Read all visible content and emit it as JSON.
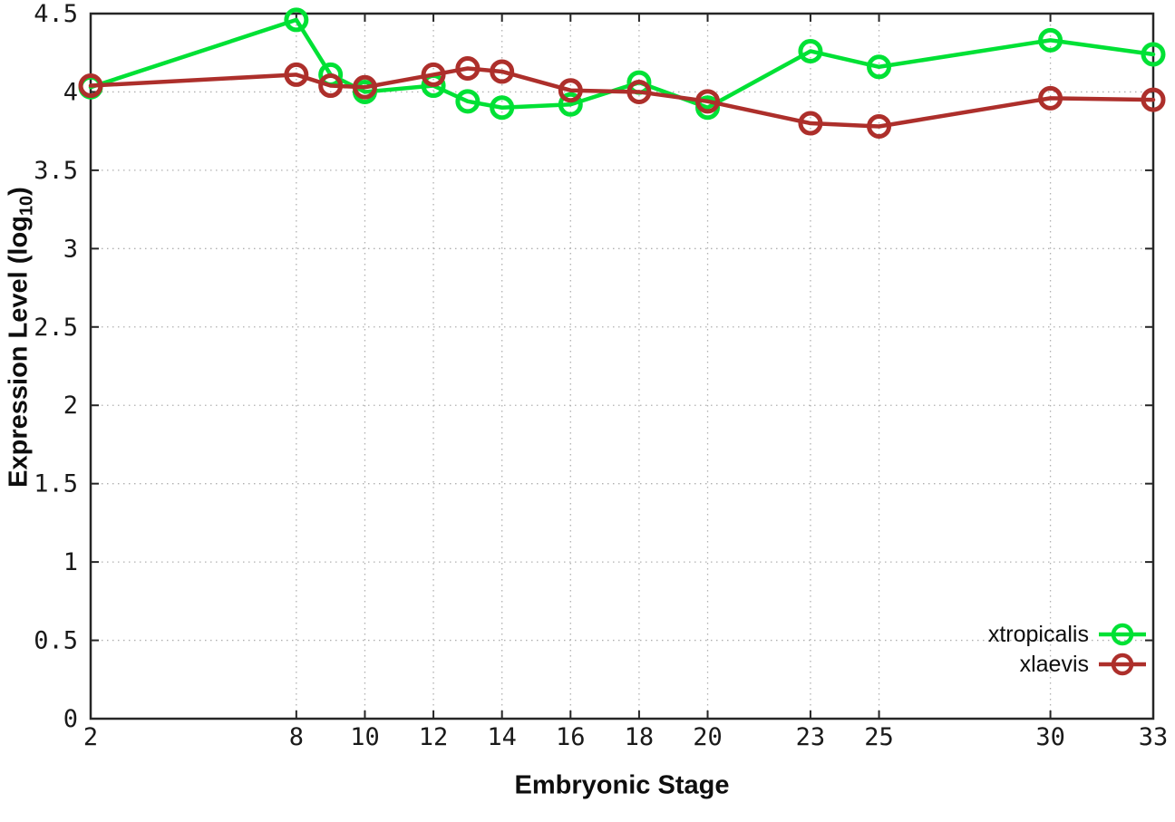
{
  "chart_data": {
    "type": "line",
    "title": "",
    "xlabel": "Embryonic Stage",
    "ylabel": "Expression Level (log10)",
    "ylabel_base": "Expression Level (log",
    "ylabel_sub": "10",
    "ylabel_close": ")",
    "x": [
      2,
      8,
      9,
      10,
      12,
      13,
      14,
      16,
      18,
      20,
      23,
      25,
      30,
      33
    ],
    "series": [
      {
        "name": "xtropicalis",
        "color": "#00e135",
        "values": [
          4.03,
          4.46,
          4.11,
          4.0,
          4.04,
          3.94,
          3.9,
          3.92,
          4.06,
          3.9,
          4.26,
          4.16,
          4.33,
          4.24
        ]
      },
      {
        "name": "xlaevis",
        "color": "#ad2f2b",
        "values": [
          4.04,
          4.11,
          4.04,
          4.03,
          4.11,
          4.15,
          4.13,
          4.01,
          4.0,
          3.94,
          3.8,
          3.78,
          3.96,
          3.95
        ]
      }
    ],
    "xticks": [
      2,
      8,
      10,
      12,
      14,
      16,
      18,
      20,
      23,
      25,
      30,
      33
    ],
    "xtick_labels": [
      "2",
      "8",
      "10",
      "12",
      "14",
      "16",
      "18",
      "20",
      "23",
      "25",
      "30",
      "33"
    ],
    "yticks": [
      0,
      0.5,
      1,
      1.5,
      2,
      2.5,
      3,
      3.5,
      4,
      4.5
    ],
    "ytick_labels": [
      "0",
      "0.5",
      "1",
      "1.5",
      "2",
      "2.5",
      "3",
      "3.5",
      "4",
      "4.5"
    ],
    "xlim": [
      2,
      33
    ],
    "ylim": [
      0,
      4.5
    ],
    "grid": true,
    "grid_style": "dotted",
    "legend_position": "bottom-right",
    "marker": "open-circle",
    "colors": {
      "border": "#262626",
      "grid": "#b0b0b0",
      "tick_text": "#1a1a1a"
    }
  }
}
